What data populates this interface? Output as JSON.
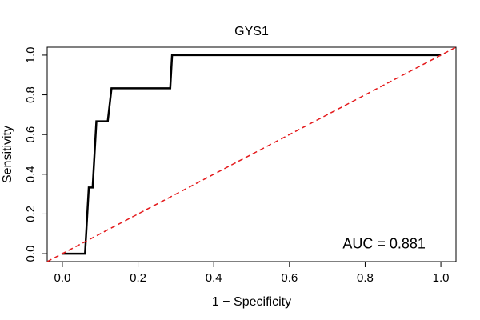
{
  "chart_data": {
    "type": "line",
    "title": "GYS1",
    "xlabel": "1 − Specificity",
    "ylabel": "Sensitivity",
    "xlim": [
      -0.04,
      1.04
    ],
    "ylim": [
      -0.04,
      1.04
    ],
    "x_ticks": [
      "0.0",
      "0.2",
      "0.4",
      "0.6",
      "0.8",
      "1.0"
    ],
    "x_tick_values": [
      0,
      0.2,
      0.4,
      0.6,
      0.8,
      1.0
    ],
    "y_ticks": [
      "0.0",
      "0.2",
      "0.4",
      "0.6",
      "0.8",
      "1.0"
    ],
    "y_tick_values": [
      0,
      0.2,
      0.4,
      0.6,
      0.8,
      1.0
    ],
    "grid": false,
    "series": [
      {
        "color": "#000000",
        "style": "solid",
        "x": [
          0,
          0.06,
          0.07,
          0.08,
          0.09,
          0.12,
          0.13,
          0.285,
          0.29,
          1.0
        ],
        "y": [
          0,
          0,
          0.333,
          0.333,
          0.667,
          0.667,
          0.833,
          0.833,
          1.0,
          1.0
        ]
      },
      {
        "color": "#e41a1c",
        "style": "dashed",
        "x": [
          -0.04,
          1.04
        ],
        "y": [
          -0.04,
          1.04
        ]
      }
    ],
    "annotation": {
      "text": "AUC = 0.881",
      "x": 0.85,
      "y": 0.05
    }
  }
}
